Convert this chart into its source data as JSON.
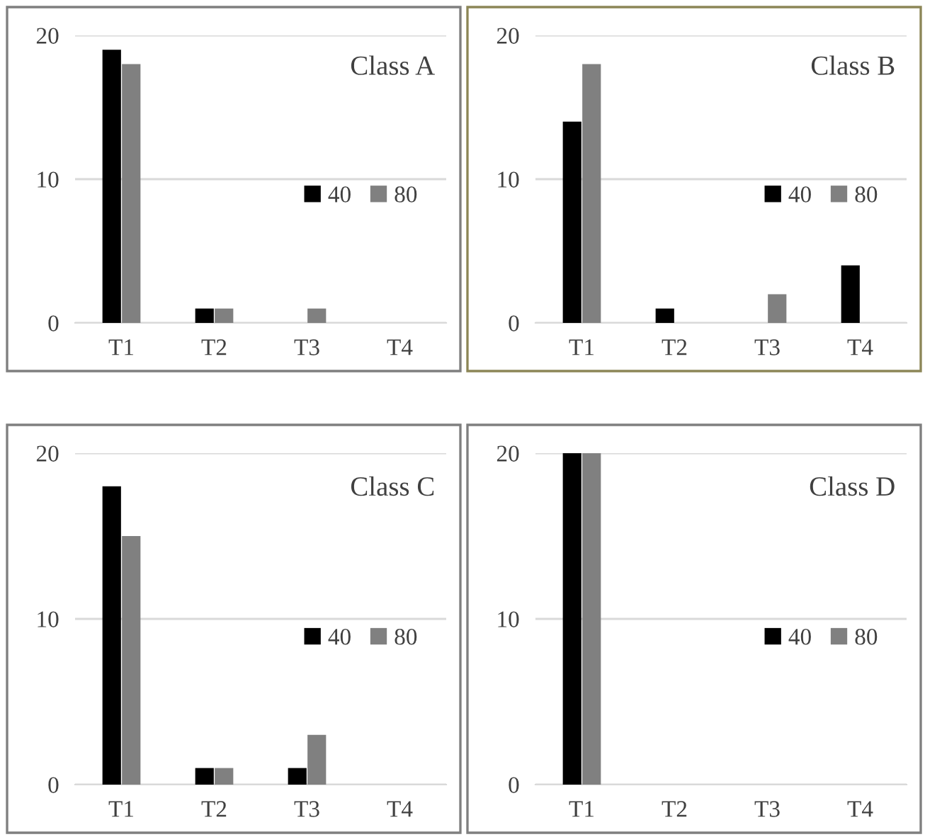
{
  "chart_data": [
    {
      "type": "bar",
      "title": "Class A",
      "categories": [
        "T1",
        "T2",
        "T3",
        "T4"
      ],
      "series": [
        {
          "name": "40",
          "color": "#000000",
          "values": [
            19,
            1,
            0,
            0
          ]
        },
        {
          "name": "80",
          "color": "#808080",
          "values": [
            18,
            1,
            1,
            0
          ]
        }
      ],
      "ylim": [
        0,
        20
      ],
      "yticks": [
        0,
        10,
        20
      ],
      "grid": "y",
      "legend": "right"
    },
    {
      "type": "bar",
      "title": "Class B",
      "categories": [
        "T1",
        "T2",
        "T3",
        "T4"
      ],
      "series": [
        {
          "name": "40",
          "color": "#000000",
          "values": [
            14,
            1,
            0,
            4
          ]
        },
        {
          "name": "80",
          "color": "#808080",
          "values": [
            18,
            0,
            2,
            0
          ]
        }
      ],
      "ylim": [
        0,
        20
      ],
      "yticks": [
        0,
        10,
        20
      ],
      "grid": "y",
      "legend": "right"
    },
    {
      "type": "bar",
      "title": "Class C",
      "categories": [
        "T1",
        "T2",
        "T3",
        "T4"
      ],
      "series": [
        {
          "name": "40",
          "color": "#000000",
          "values": [
            18,
            1,
            1,
            0
          ]
        },
        {
          "name": "80",
          "color": "#808080",
          "values": [
            15,
            1,
            3,
            0
          ]
        }
      ],
      "ylim": [
        0,
        20
      ],
      "yticks": [
        0,
        10,
        20
      ],
      "grid": "y",
      "legend": "right"
    },
    {
      "type": "bar",
      "title": "Class D",
      "categories": [
        "T1",
        "T2",
        "T3",
        "T4"
      ],
      "series": [
        {
          "name": "40",
          "color": "#000000",
          "values": [
            20,
            0,
            0,
            0
          ]
        },
        {
          "name": "80",
          "color": "#808080",
          "values": [
            20,
            0,
            0,
            0
          ]
        }
      ],
      "ylim": [
        0,
        20
      ],
      "yticks": [
        0,
        10,
        20
      ],
      "grid": "y",
      "legend": "right"
    }
  ]
}
